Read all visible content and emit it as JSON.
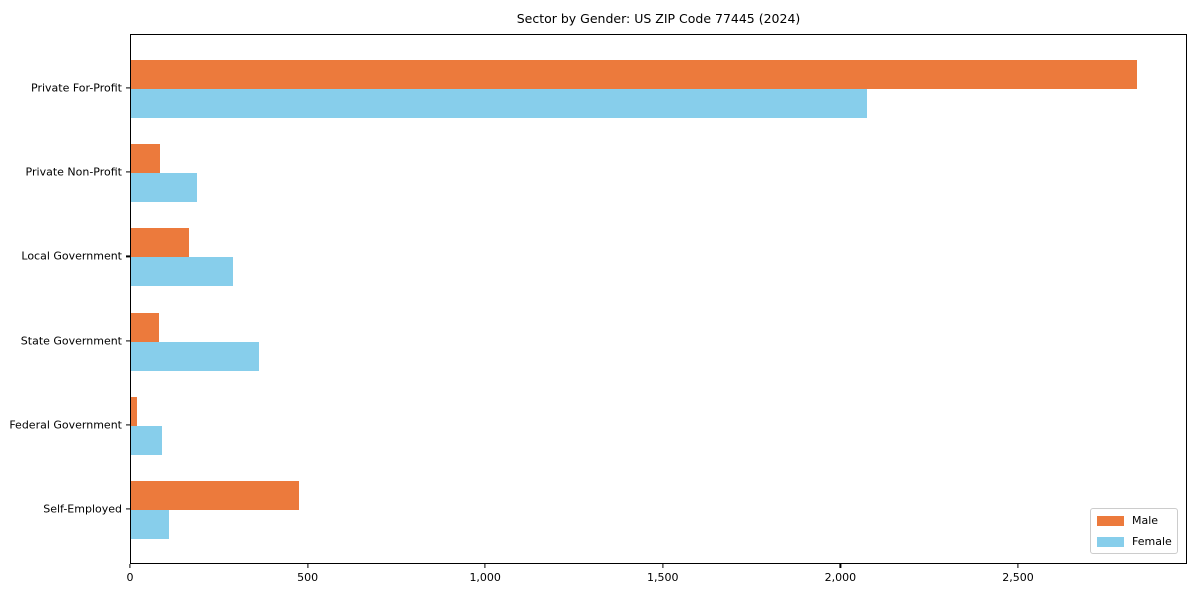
{
  "figure": {
    "background": "#ffffff",
    "axis_color": "#000000",
    "text_color": "#000000",
    "legend_border_color": "#cccccc"
  },
  "chart_data": {
    "type": "bar",
    "orientation": "horizontal",
    "title": "Sector by Gender: US ZIP Code 77445 (2024)",
    "categories": [
      "Private For-Profit",
      "Private Non-Profit",
      "Local Government",
      "State Government",
      "Federal Government",
      "Self-Employed"
    ],
    "series": [
      {
        "name": "Male",
        "color": "#EC7A3C",
        "values": [
          2831,
          82,
          164,
          79,
          18,
          473
        ]
      },
      {
        "name": "Female",
        "color": "#87CEEB",
        "values": [
          2071,
          186,
          288,
          360,
          87,
          107
        ]
      }
    ],
    "xlabel": "",
    "ylabel": "",
    "xlim": [
      0,
      2973
    ],
    "x_ticks": [
      0,
      500,
      1000,
      1500,
      2000,
      2500
    ],
    "x_tick_labels": [
      "0",
      "500",
      "1,000",
      "1,500",
      "2,000",
      "2,500"
    ],
    "grid": false,
    "legend": {
      "position": "lower-right",
      "entries": [
        "Male",
        "Female"
      ]
    }
  }
}
